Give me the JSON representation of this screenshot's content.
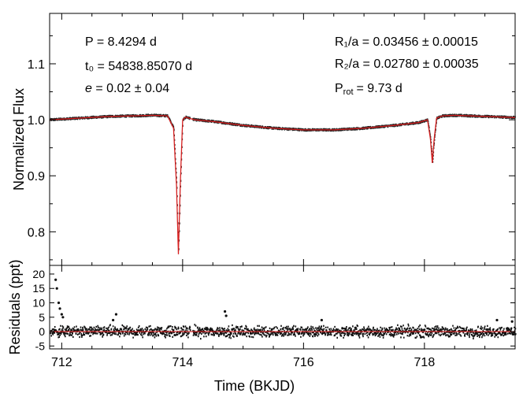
{
  "chart_data": [
    {
      "type": "line",
      "panel": "top",
      "ylabel": "Normalized Flux",
      "xlim": [
        711.8,
        719.5
      ],
      "ylim": [
        0.74,
        1.19
      ],
      "yticks": [
        0.8,
        0.9,
        1.0,
        1.1
      ],
      "ytick_labels": [
        "0.8",
        "0.9",
        "1.0",
        "1.1"
      ],
      "grid": false,
      "annotations": {
        "period": "P = 8.4294 d",
        "t0": "t₀ = 54838.85070 d",
        "ecc_symbol": "e",
        "ecc_value": " = 0.02 ± 0.04",
        "r1": "R₁/a = 0.03456 ± 0.00015",
        "r2": "R₂/a = 0.02780 ± 0.00035",
        "prot_sym": "P",
        "prot_sub": "rot",
        "prot_value": "= 9.73 d"
      },
      "series": [
        {
          "color": "#d62020",
          "x": [
            711.8,
            712.3,
            712.8,
            713.2,
            713.5,
            713.75,
            713.85,
            713.9,
            713.93,
            713.96,
            714.0,
            714.05,
            714.1,
            714.2,
            714.5,
            715.0,
            715.5,
            716.0,
            716.5,
            717.0,
            717.5,
            717.9,
            718.05,
            718.1,
            718.13,
            718.16,
            718.2,
            718.3,
            718.5,
            719.0,
            719.5
          ],
          "y": [
            1.0,
            1.003,
            1.006,
            1.007,
            1.008,
            1.007,
            0.985,
            0.88,
            0.76,
            0.88,
            1.0,
            1.005,
            1.003,
            1.0,
            0.997,
            0.99,
            0.985,
            0.982,
            0.982,
            0.985,
            0.99,
            0.995,
            1.0,
            0.965,
            0.923,
            0.965,
            1.003,
            1.007,
            1.008,
            1.006,
            1.004
          ]
        }
      ]
    },
    {
      "type": "scatter",
      "panel": "bottom",
      "xlabel": "Time (BKJD)",
      "ylabel": "Residuals (ppt)",
      "xlim": [
        711.8,
        719.5
      ],
      "ylim": [
        -6,
        23
      ],
      "xticks": [
        712,
        714,
        716,
        718
      ],
      "xtick_labels": [
        "712",
        "714",
        "716",
        "718"
      ],
      "yticks": [
        -5,
        0,
        5,
        10,
        15,
        20
      ],
      "ytick_labels": [
        "-5",
        "0",
        "5",
        "10",
        "15",
        "20"
      ],
      "zero_line_color": "#d62020",
      "point_color": "#111111",
      "scatter_band_ppt": [
        -2.5,
        2.5
      ],
      "outliers": [
        {
          "x": 711.9,
          "y": 18
        },
        {
          "x": 711.92,
          "y": 15
        },
        {
          "x": 711.95,
          "y": 10
        },
        {
          "x": 711.97,
          "y": 8
        },
        {
          "x": 712.0,
          "y": 6
        },
        {
          "x": 712.02,
          "y": 5
        },
        {
          "x": 712.9,
          "y": 6
        },
        {
          "x": 712.85,
          "y": 4
        },
        {
          "x": 714.7,
          "y": 7
        },
        {
          "x": 714.72,
          "y": 5.5
        },
        {
          "x": 716.3,
          "y": 4
        },
        {
          "x": 719.2,
          "y": 4
        },
        {
          "x": 719.45,
          "y": 3.5
        }
      ],
      "gap_x": [
        714.12,
        714.16
      ]
    }
  ]
}
